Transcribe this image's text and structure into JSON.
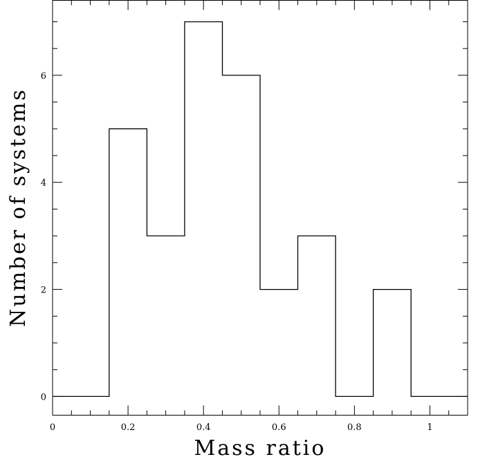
{
  "chart_data": {
    "type": "bar",
    "style": "step-histogram",
    "title": "",
    "xlabel": "Mass ratio",
    "ylabel": "Number of systems",
    "xlim": [
      0,
      1.1
    ],
    "ylim": [
      -0.35,
      7.4
    ],
    "x_ticks": [
      "0",
      "0.2",
      "0.4",
      "0.6",
      "0.8",
      "1"
    ],
    "y_ticks": [
      "0",
      "2",
      "4",
      "6"
    ],
    "bin_edges": [
      0,
      0.15,
      0.25,
      0.35,
      0.45,
      0.55,
      0.65,
      0.75,
      0.85,
      0.95,
      1.1
    ],
    "values": [
      0,
      5,
      3,
      7,
      6,
      2,
      3,
      0,
      2,
      0
    ],
    "grid": false,
    "legend": "none",
    "line_color": "#000000"
  }
}
